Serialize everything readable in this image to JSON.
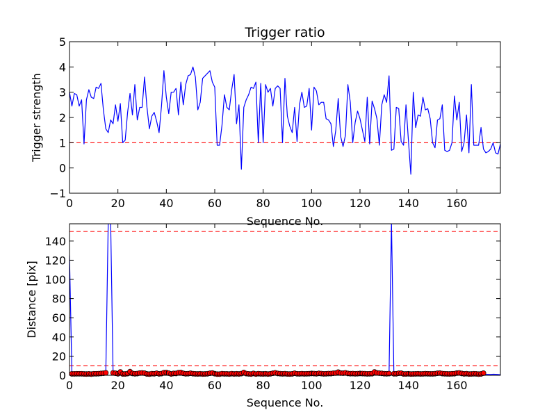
{
  "chart_data": [
    {
      "type": "line",
      "title": "Trigger ratio",
      "xlabel": "Sequence No.",
      "ylabel": "Trigger strength",
      "xlim": [
        0,
        178
      ],
      "ylim": [
        -1,
        5
      ],
      "xticks": [
        0,
        20,
        40,
        60,
        80,
        100,
        120,
        140,
        160
      ],
      "yticks": [
        -1,
        0,
        1,
        2,
        3,
        4,
        5
      ],
      "line_color": "#0000ff",
      "threshold_color": "#ff0000",
      "thresholds": [
        1.0
      ],
      "series": [
        {
          "values": [
            3.0,
            2.45,
            2.95,
            2.9,
            2.45,
            2.7,
            0.95,
            2.7,
            3.1,
            2.8,
            2.75,
            3.2,
            3.15,
            3.35,
            2.3,
            1.55,
            1.4,
            1.9,
            1.75,
            2.5,
            1.85,
            2.55,
            1.0,
            1.1,
            2.2,
            2.95,
            2.1,
            3.3,
            1.9,
            2.4,
            2.4,
            3.6,
            2.4,
            1.55,
            2.05,
            2.2,
            1.85,
            1.4,
            2.45,
            3.85,
            2.8,
            2.15,
            3.0,
            3.0,
            3.15,
            2.1,
            3.4,
            2.5,
            3.3,
            3.65,
            3.7,
            4.0,
            3.6,
            2.3,
            2.6,
            3.55,
            3.65,
            3.75,
            3.85,
            3.4,
            3.2,
            0.9,
            0.9,
            1.7,
            2.9,
            2.4,
            2.3,
            3.1,
            3.7,
            1.75,
            2.5,
            -0.05,
            2.4,
            2.7,
            2.9,
            3.2,
            3.15,
            3.4,
            1.0,
            3.35,
            1.0,
            3.3,
            3.0,
            3.15,
            2.45,
            3.15,
            3.25,
            3.15,
            1.0,
            3.55,
            2.05,
            1.65,
            1.4,
            2.4,
            1.05,
            2.5,
            3.0,
            2.4,
            2.45,
            3.15,
            1.5,
            3.2,
            3.05,
            2.5,
            2.6,
            2.6,
            1.95,
            1.9,
            1.75,
            0.85,
            1.5,
            2.75,
            1.25,
            0.85,
            1.3,
            3.3,
            2.6,
            1.0,
            1.8,
            2.25,
            1.95,
            1.5,
            1.05,
            2.8,
            0.95,
            2.65,
            2.35,
            1.95,
            0.9,
            2.5,
            2.9,
            2.6,
            3.65,
            0.7,
            0.75,
            2.4,
            2.35,
            1.05,
            0.9,
            2.5,
            1.1,
            -0.25,
            3.0,
            1.6,
            2.1,
            2.05,
            2.8,
            2.3,
            2.35,
            1.95,
            1.0,
            0.8,
            1.9,
            1.95,
            2.5,
            0.7,
            0.65,
            0.7,
            1.0,
            2.85,
            1.9,
            2.6,
            0.65,
            1.0,
            2.1,
            0.6,
            3.3,
            0.9,
            0.9,
            0.9,
            1.6,
            0.75,
            0.6,
            0.65,
            0.75,
            1.0,
            0.6,
            0.55,
            0.95,
            0.75
          ]
        }
      ]
    },
    {
      "type": "line",
      "title": "",
      "xlabel": "Sequence No.",
      "ylabel": "Distance [pix]",
      "xlim": [
        0,
        178
      ],
      "ylim": [
        0,
        158
      ],
      "xticks": [
        0,
        20,
        40,
        60,
        80,
        100,
        120,
        140,
        160
      ],
      "yticks": [
        0,
        20,
        40,
        60,
        80,
        100,
        120,
        140
      ],
      "line_color": "#0000ff",
      "marker_color": "#ff0000",
      "threshold_color": "#ff0000",
      "thresholds": [
        10,
        150
      ],
      "series": [
        {
          "values": [
            125,
            1.5,
            1.5,
            1.6,
            1.6,
            1.6,
            1.4,
            1.3,
            1.5,
            1.2,
            1.6,
            1.6,
            1.7,
            1.9,
            2.1,
            2.6,
            160,
            160,
            2.5,
            2.1,
            1.6,
            3.5,
            1.4,
            1.4,
            1.8,
            3.8,
            1.9,
            1.6,
            1.8,
            2.3,
            2.5,
            2.2,
            1.4,
            1.2,
            1.7,
            1.6,
            2.1,
            1.5,
            1.8,
            2.8,
            2.9,
            2.2,
            1.4,
            1.9,
            1.9,
            2.8,
            2.9,
            2.0,
            1.6,
            1.7,
            2.1,
            1.7,
            1.5,
            1.4,
            1.6,
            1.3,
            1.4,
            1.6,
            2.1,
            2.4,
            1.7,
            1.2,
            1.2,
            1.7,
            1.5,
            1.5,
            1.3,
            1.7,
            1.4,
            1.6,
            1.4,
            1.8,
            2.9,
            1.8,
            1.5,
            1.3,
            1.9,
            1.3,
            1.7,
            1.5,
            1.4,
            1.6,
            1.3,
            1.6,
            2.1,
            2.6,
            1.9,
            1.7,
            1.5,
            1.7,
            1.4,
            1.3,
            1.5,
            2.1,
            1.6,
            1.5,
            1.7,
            1.5,
            1.6,
            1.7,
            1.9,
            1.8,
            1.6,
            2.0,
            1.8,
            1.5,
            1.6,
            1.8,
            1.8,
            2.1,
            2.3,
            3.3,
            2.3,
            2.2,
            2.6,
            1.9,
            1.7,
            1.8,
            1.6,
            1.7,
            1.9,
            1.8,
            1.7,
            1.5,
            1.6,
            1.7,
            3.5,
            2.5,
            2.2,
            2.0,
            1.7,
            1.6,
            1.8,
            160,
            1.6,
            1.6,
            2.1,
            2.2,
            1.4,
            1.4,
            1.6,
            1.3,
            1.4,
            1.5,
            1.6,
            1.4,
            1.5,
            1.7,
            1.6,
            1.5,
            1.5,
            1.7,
            2.1,
            2.3,
            1.8,
            1.6,
            1.5,
            1.4,
            1.6,
            1.7,
            2.3,
            2.5,
            1.9,
            1.5,
            1.7,
            1.3,
            1.4,
            1.6,
            1.5,
            1.2,
            1.4,
            2.2,
            1.0,
            0.9,
            0.8,
            1.1,
            1.0,
            0.8,
            0.6,
            0.7
          ],
          "marked_points": [
            [
              1,
              1.5
            ],
            [
              2,
              1.5
            ],
            [
              3,
              1.6
            ],
            [
              4,
              1.6
            ],
            [
              5,
              1.6
            ],
            [
              6,
              1.4
            ],
            [
              7,
              1.3
            ],
            [
              8,
              1.5
            ],
            [
              9,
              1.2
            ],
            [
              10,
              1.6
            ],
            [
              11,
              1.6
            ],
            [
              12,
              1.7
            ],
            [
              13,
              1.9
            ],
            [
              14,
              2.1
            ],
            [
              15,
              2.6
            ],
            [
              18,
              2.5
            ],
            [
              19,
              2.1
            ],
            [
              20,
              1.6
            ],
            [
              21,
              3.5
            ],
            [
              22,
              1.4
            ],
            [
              23,
              1.4
            ],
            [
              24,
              1.8
            ],
            [
              25,
              3.8
            ],
            [
              26,
              1.9
            ],
            [
              27,
              1.6
            ],
            [
              28,
              1.8
            ],
            [
              29,
              2.3
            ],
            [
              30,
              2.5
            ],
            [
              31,
              2.2
            ],
            [
              32,
              1.4
            ],
            [
              33,
              1.2
            ],
            [
              34,
              1.7
            ],
            [
              35,
              1.6
            ],
            [
              36,
              2.1
            ],
            [
              37,
              1.5
            ],
            [
              38,
              1.8
            ],
            [
              39,
              2.8
            ],
            [
              40,
              2.9
            ],
            [
              41,
              2.2
            ],
            [
              42,
              1.4
            ],
            [
              43,
              1.9
            ],
            [
              44,
              1.9
            ],
            [
              45,
              2.8
            ],
            [
              46,
              2.9
            ],
            [
              47,
              2.0
            ],
            [
              48,
              1.6
            ],
            [
              49,
              1.7
            ],
            [
              50,
              2.1
            ],
            [
              51,
              1.7
            ],
            [
              52,
              1.5
            ],
            [
              53,
              1.4
            ],
            [
              54,
              1.6
            ],
            [
              55,
              1.3
            ],
            [
              56,
              1.4
            ],
            [
              57,
              1.6
            ],
            [
              58,
              2.1
            ],
            [
              59,
              2.4
            ],
            [
              60,
              1.7
            ],
            [
              61,
              1.2
            ],
            [
              62,
              1.2
            ],
            [
              63,
              1.7
            ],
            [
              64,
              1.5
            ],
            [
              65,
              1.5
            ],
            [
              66,
              1.3
            ],
            [
              67,
              1.7
            ],
            [
              68,
              1.4
            ],
            [
              69,
              1.6
            ],
            [
              70,
              1.4
            ],
            [
              71,
              1.8
            ],
            [
              72,
              2.9
            ],
            [
              73,
              1.8
            ],
            [
              74,
              1.5
            ],
            [
              75,
              1.3
            ],
            [
              76,
              1.9
            ],
            [
              77,
              1.3
            ],
            [
              78,
              1.7
            ],
            [
              79,
              1.5
            ],
            [
              80,
              1.4
            ],
            [
              81,
              1.6
            ],
            [
              82,
              1.3
            ],
            [
              83,
              1.6
            ],
            [
              84,
              2.1
            ],
            [
              85,
              2.6
            ],
            [
              86,
              1.9
            ],
            [
              87,
              1.7
            ],
            [
              88,
              1.5
            ],
            [
              89,
              1.7
            ],
            [
              90,
              1.4
            ],
            [
              91,
              1.3
            ],
            [
              92,
              1.5
            ],
            [
              93,
              2.1
            ],
            [
              94,
              1.6
            ],
            [
              95,
              1.5
            ],
            [
              96,
              1.7
            ],
            [
              97,
              1.5
            ],
            [
              98,
              1.6
            ],
            [
              99,
              1.7
            ],
            [
              100,
              1.9
            ],
            [
              101,
              1.8
            ],
            [
              102,
              1.6
            ],
            [
              103,
              2.0
            ],
            [
              104,
              1.8
            ],
            [
              105,
              1.5
            ],
            [
              106,
              1.6
            ],
            [
              107,
              1.8
            ],
            [
              108,
              1.8
            ],
            [
              109,
              2.1
            ],
            [
              110,
              2.3
            ],
            [
              111,
              3.3
            ],
            [
              112,
              2.3
            ],
            [
              113,
              2.2
            ],
            [
              114,
              2.6
            ],
            [
              115,
              1.9
            ],
            [
              116,
              1.7
            ],
            [
              117,
              1.8
            ],
            [
              118,
              1.6
            ],
            [
              119,
              1.7
            ],
            [
              120,
              1.9
            ],
            [
              121,
              1.8
            ],
            [
              122,
              1.7
            ],
            [
              123,
              1.5
            ],
            [
              124,
              1.6
            ],
            [
              125,
              1.7
            ],
            [
              126,
              3.5
            ],
            [
              127,
              2.5
            ],
            [
              128,
              2.2
            ],
            [
              129,
              2.0
            ],
            [
              130,
              1.7
            ],
            [
              131,
              1.6
            ],
            [
              132,
              1.8
            ],
            [
              134,
              1.6
            ],
            [
              135,
              1.6
            ],
            [
              136,
              2.1
            ],
            [
              137,
              2.2
            ],
            [
              138,
              1.4
            ],
            [
              139,
              1.4
            ],
            [
              140,
              1.6
            ],
            [
              141,
              1.3
            ],
            [
              142,
              1.4
            ],
            [
              143,
              1.5
            ],
            [
              144,
              1.6
            ],
            [
              145,
              1.4
            ],
            [
              146,
              1.5
            ],
            [
              147,
              1.7
            ],
            [
              148,
              1.6
            ],
            [
              149,
              1.5
            ],
            [
              150,
              1.5
            ],
            [
              151,
              1.7
            ],
            [
              152,
              2.1
            ],
            [
              153,
              2.3
            ],
            [
              154,
              1.8
            ],
            [
              155,
              1.6
            ],
            [
              156,
              1.5
            ],
            [
              157,
              1.4
            ],
            [
              158,
              1.6
            ],
            [
              159,
              1.7
            ],
            [
              160,
              2.3
            ],
            [
              161,
              2.5
            ],
            [
              162,
              1.9
            ],
            [
              163,
              1.5
            ],
            [
              164,
              1.7
            ],
            [
              165,
              1.3
            ],
            [
              166,
              1.4
            ],
            [
              167,
              1.6
            ],
            [
              168,
              1.5
            ],
            [
              169,
              1.2
            ],
            [
              170,
              1.4
            ],
            [
              171,
              2.2
            ]
          ]
        }
      ]
    }
  ]
}
